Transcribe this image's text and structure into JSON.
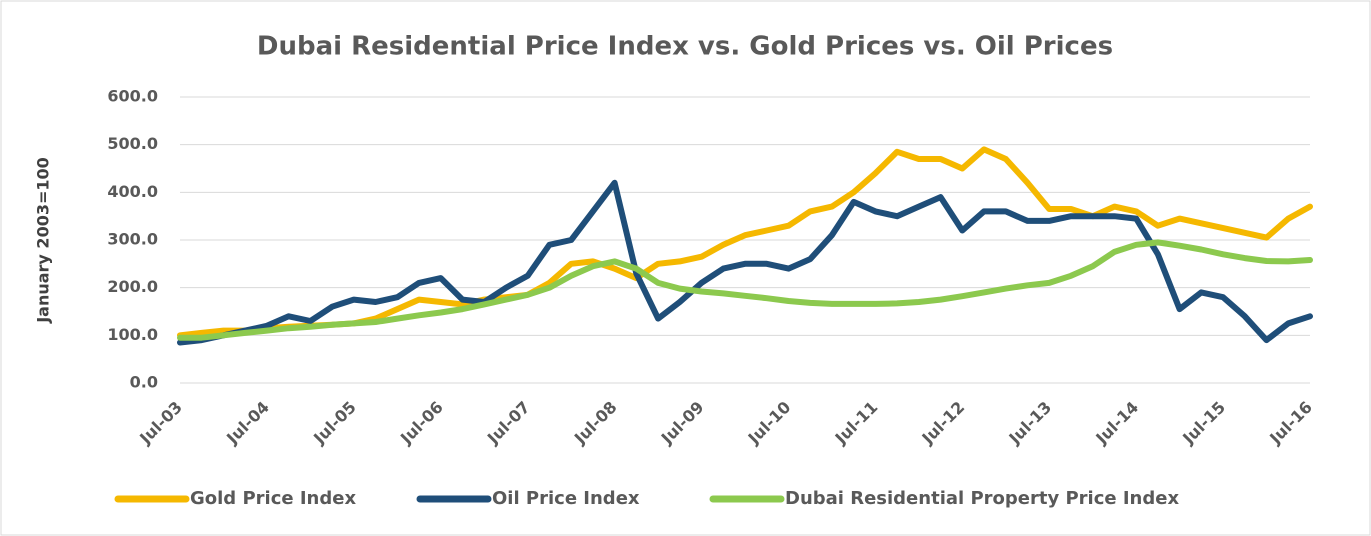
{
  "chart_data": {
    "type": "line",
    "title": "Dubai Residential Price Index vs. Gold Prices vs. Oil Prices",
    "y_label": "January 2003=100",
    "categories": [
      "Jul-03",
      null,
      null,
      null,
      "Jul-04",
      null,
      null,
      null,
      "Jul-05",
      null,
      null,
      null,
      "Jul-06",
      null,
      null,
      null,
      "Jul-07",
      null,
      null,
      null,
      "Jul-08",
      null,
      null,
      null,
      "Jul-09",
      null,
      null,
      null,
      "Jul-10",
      null,
      null,
      null,
      "Jul-11",
      null,
      null,
      null,
      "Jul-12",
      null,
      null,
      null,
      "Jul-13",
      null,
      null,
      null,
      "Jul-14",
      null,
      null,
      null,
      "Jul-15",
      null,
      null,
      null,
      "Jul-16"
    ],
    "series": [
      {
        "name": "Gold Price Index",
        "color": "#f5b800",
        "values": [
          100,
          105,
          110,
          110,
          115,
          118,
          120,
          122,
          125,
          135,
          155,
          175,
          170,
          165,
          175,
          180,
          185,
          210,
          250,
          255,
          240,
          220,
          250,
          255,
          265,
          290,
          310,
          320,
          330,
          360,
          370,
          400,
          440,
          485,
          470,
          470,
          450,
          490,
          470,
          420,
          365,
          365,
          350,
          370,
          360,
          330,
          345,
          335,
          325,
          315,
          305,
          345,
          370
        ]
      },
      {
        "name": "Oil Price Index",
        "color": "#1f4e79",
        "values": [
          85,
          90,
          100,
          110,
          120,
          140,
          130,
          160,
          175,
          170,
          180,
          210,
          220,
          175,
          170,
          200,
          225,
          290,
          300,
          360,
          420,
          230,
          135,
          170,
          210,
          240,
          250,
          250,
          240,
          260,
          310,
          380,
          360,
          350,
          370,
          390,
          320,
          360,
          360,
          340,
          340,
          350,
          350,
          350,
          345,
          270,
          155,
          190,
          180,
          140,
          90,
          125,
          140
        ]
      },
      {
        "name": "Dubai Residential Property Price Index",
        "color": "#8cc94e",
        "values": [
          95,
          95,
          100,
          105,
          110,
          115,
          118,
          122,
          125,
          128,
          135,
          142,
          148,
          155,
          165,
          175,
          185,
          200,
          225,
          245,
          255,
          240,
          210,
          198,
          192,
          188,
          183,
          178,
          172,
          168,
          166,
          166,
          166,
          167,
          170,
          175,
          182,
          190,
          198,
          205,
          210,
          225,
          245,
          275,
          290,
          295,
          288,
          280,
          270,
          262,
          256,
          255,
          258
        ]
      }
    ],
    "ylim": [
      0,
      600
    ],
    "yticks": [
      {
        "value": 0,
        "label": "0.0"
      },
      {
        "value": 100,
        "label": "100.0"
      },
      {
        "value": 200,
        "label": "200.0"
      },
      {
        "value": 300,
        "label": "300.0"
      },
      {
        "value": 400,
        "label": "400.0"
      },
      {
        "value": 500,
        "label": "500.0"
      },
      {
        "value": 600,
        "label": "600.0"
      }
    ],
    "grid": true,
    "legend": "bottom"
  }
}
